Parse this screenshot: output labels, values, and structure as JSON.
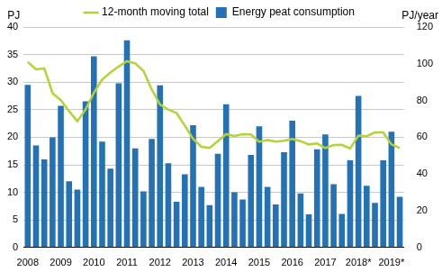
{
  "chart_data": {
    "type": "bar",
    "ylabel": "PJ",
    "y2label": "PJ/year",
    "categories": [
      "2008",
      null,
      null,
      null,
      "2009",
      null,
      null,
      null,
      "2010",
      null,
      null,
      null,
      "2011",
      null,
      null,
      null,
      "2012",
      null,
      null,
      null,
      "2013",
      null,
      null,
      null,
      "2014",
      null,
      null,
      null,
      "2015",
      null,
      null,
      null,
      "2016",
      null,
      null,
      null,
      "2017",
      null,
      null,
      null,
      "2018*",
      null,
      null,
      null,
      "2019*",
      null
    ],
    "series": [
      {
        "name": "Energy peat consumption",
        "type": "bar",
        "color": "#2472b4",
        "values": [
          29.5,
          18.5,
          16,
          20,
          25.7,
          12,
          10.5,
          26.5,
          34.7,
          19.2,
          14.3,
          29.8,
          37.6,
          18,
          10.2,
          19.7,
          29.4,
          15.3,
          8.3,
          13.3,
          22.2,
          11,
          7.7,
          17,
          26,
          10,
          8.7,
          16.8,
          22,
          11,
          7.8,
          17.3,
          23,
          9.8,
          6,
          17.8,
          20.5,
          11.5,
          6.1,
          15.8,
          27.5,
          11.2,
          8.1,
          15.8,
          21,
          9.2
        ]
      },
      {
        "name": "12-month moving total",
        "type": "line",
        "axis": "y2",
        "color": "#b5d334",
        "values": [
          101,
          97,
          97.5,
          84,
          80.2,
          74.2,
          68.7,
          75.2,
          84.2,
          91.4,
          95.2,
          98.5,
          101.4,
          100.2,
          96.1,
          86,
          77.8,
          75.1,
          73.2,
          66.3,
          59.1,
          54.8,
          54.2,
          57.9,
          61.7,
          60.7,
          61.7,
          61.5,
          57.5,
          58.5,
          57.6,
          58.1,
          59.1,
          57.9,
          56.1,
          56.6,
          54.1,
          55.8,
          55.9,
          53.9,
          60.9,
          60.6,
          62.6,
          62.6,
          56.1,
          54.1
        ]
      }
    ],
    "ylim": [
      0,
      40
    ],
    "yticks": [
      0,
      5,
      10,
      15,
      20,
      25,
      30,
      35,
      40
    ],
    "y2lim": [
      0,
      120
    ],
    "y2ticks": [
      0,
      20,
      40,
      60,
      80,
      100,
      120
    ],
    "grid": true,
    "legend": "top"
  }
}
